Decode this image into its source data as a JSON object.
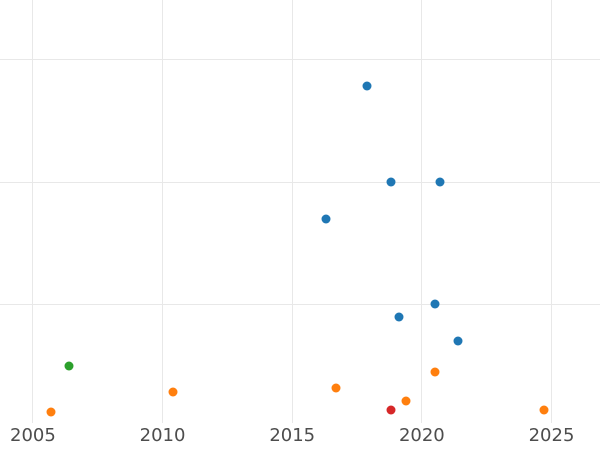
{
  "chart_data": {
    "type": "scatter",
    "title": "",
    "xlabel": "",
    "ylabel": "",
    "x_tick_labels": [
      "2005",
      "2010",
      "2015",
      "2020",
      "2025"
    ],
    "x_tick_values": [
      2005,
      2010,
      2015,
      2020,
      2025
    ],
    "xlim": [
      2003.73,
      2026.87
    ],
    "ylim": [
      0.03,
      3.49
    ],
    "y_gridline_values": [
      1,
      2,
      3
    ],
    "grid": true,
    "legend_position": "none",
    "background_color": "#ffffff",
    "gridline_color": "#e8e8e8",
    "tick_label_color": "#4d4d4d",
    "marker_diameter_px": 9,
    "series": [
      {
        "name": "blue-series",
        "color": "#1f77b4",
        "points": [
          {
            "x": 2017.9,
            "y": 2.79
          },
          {
            "x": 2018.8,
            "y": 2.0
          },
          {
            "x": 2020.7,
            "y": 2.0
          },
          {
            "x": 2016.3,
            "y": 1.7
          },
          {
            "x": 2020.5,
            "y": 1.0
          },
          {
            "x": 2019.1,
            "y": 0.9
          },
          {
            "x": 2021.4,
            "y": 0.7
          }
        ]
      },
      {
        "name": "orange-series",
        "color": "#ff7f0e",
        "points": [
          {
            "x": 2005.7,
            "y": 0.12
          },
          {
            "x": 2010.4,
            "y": 0.28
          },
          {
            "x": 2016.7,
            "y": 0.32
          },
          {
            "x": 2019.4,
            "y": 0.21
          },
          {
            "x": 2020.5,
            "y": 0.45
          },
          {
            "x": 2024.7,
            "y": 0.14
          }
        ]
      },
      {
        "name": "green-series",
        "color": "#2ca02c",
        "points": [
          {
            "x": 2006.4,
            "y": 0.5
          }
        ]
      },
      {
        "name": "red-series",
        "color": "#d62728",
        "points": [
          {
            "x": 2018.8,
            "y": 0.14
          }
        ]
      }
    ]
  }
}
